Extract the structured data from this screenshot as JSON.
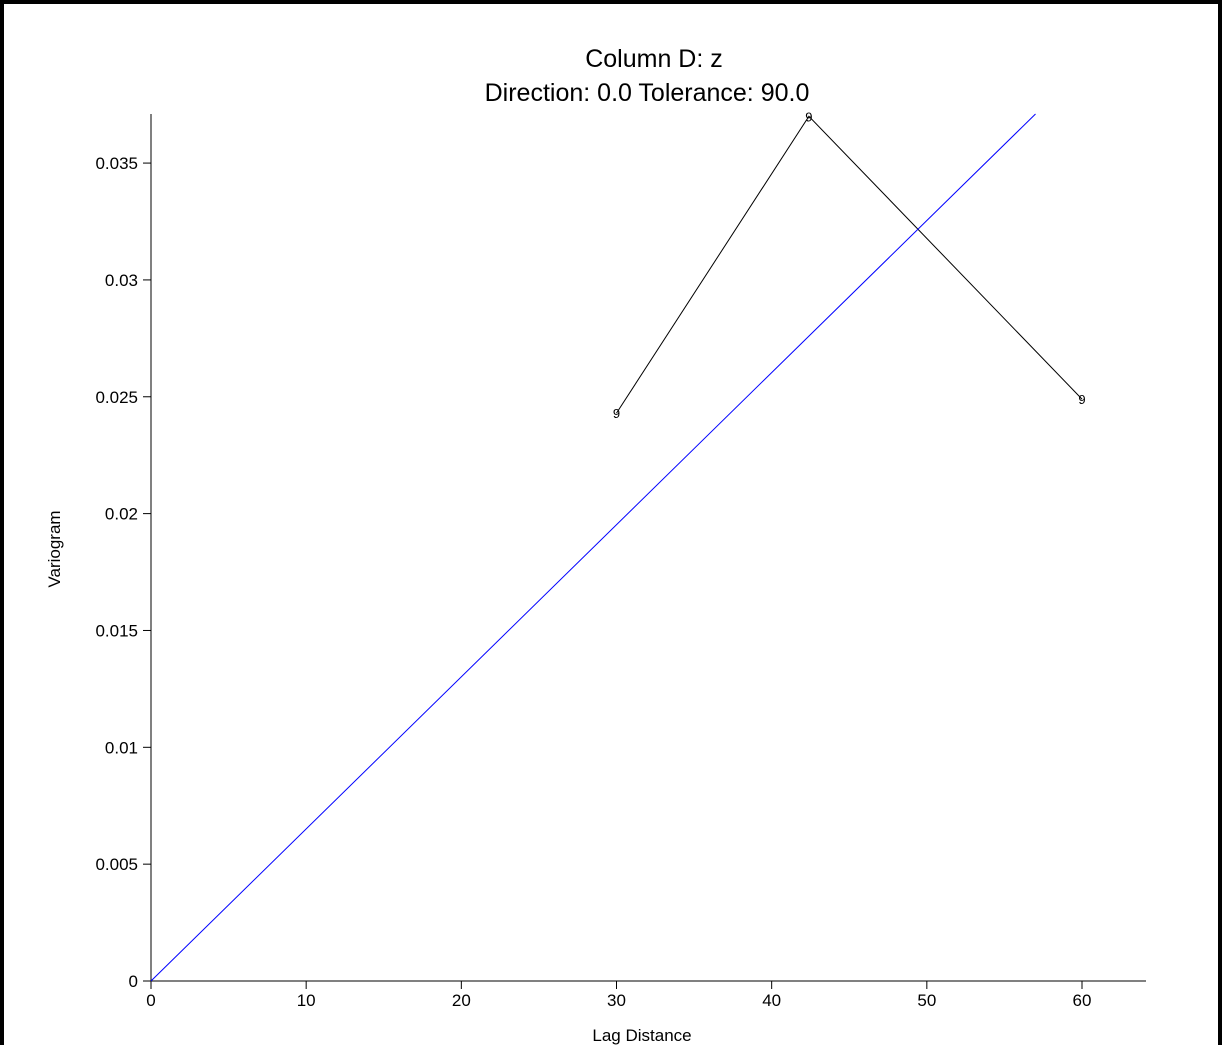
{
  "chart_data": {
    "type": "line",
    "title": "Column D:  z",
    "subtitle": "Direction: 0.0   Tolerance: 90.0",
    "xlabel": "Lag Distance",
    "ylabel": "Variogram",
    "xlim": [
      0,
      64
    ],
    "ylim": [
      0,
      0.0371
    ],
    "x_ticks": [
      0,
      10,
      20,
      30,
      40,
      50,
      60
    ],
    "x_tick_labels": [
      "0",
      "10",
      "20",
      "30",
      "40",
      "50",
      "60"
    ],
    "y_ticks": [
      0,
      0.005,
      0.01,
      0.015,
      0.02,
      0.025,
      0.03,
      0.035
    ],
    "y_tick_labels": [
      "0",
      "0.005",
      "0.01",
      "0.015",
      "0.02",
      "0.025",
      "0.03",
      "0.035"
    ],
    "grid": false,
    "series": [
      {
        "role": "experimental",
        "color": "#000000",
        "marker": "9",
        "x": [
          30,
          42.4,
          60
        ],
        "y": [
          0.0243,
          0.037,
          0.0249
        ]
      },
      {
        "role": "model",
        "color": "#0000ff",
        "x": [
          0,
          57
        ],
        "y": [
          0,
          0.0371
        ]
      }
    ]
  }
}
